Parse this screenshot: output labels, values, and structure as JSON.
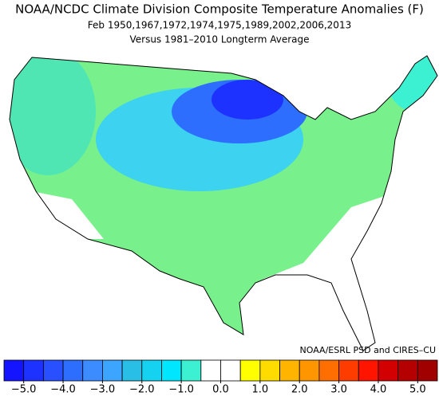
{
  "title": "NOAA/NCDC Climate Division Composite Temperature Anomalies (F)",
  "subtitle": "Feb  1950,1967,1972,1974,1975,1989,2002,2006,2013",
  "caption": "Versus 1981–2010 Longterm Average",
  "credit": "NOAA/ESRL PSD and CIRES–CU",
  "colorbar": {
    "colors": [
      "#1414ff",
      "#1e32ff",
      "#2850ff",
      "#2d6eff",
      "#3c8cff",
      "#3ca5ff",
      "#28bee6",
      "#14d2f0",
      "#00e6ff",
      "#3cf0d2",
      "#ffffff",
      "#ffffff",
      "#ffff00",
      "#ffdc00",
      "#ffb400",
      "#ff9600",
      "#ff6e00",
      "#ff3c00",
      "#ff1400",
      "#d20000",
      "#b40000",
      "#a00000"
    ],
    "ticks": [
      {
        "value": -5,
        "label": "−5.0"
      },
      {
        "value": -4,
        "label": "−4.0"
      },
      {
        "value": -3,
        "label": "−3.0"
      },
      {
        "value": -2,
        "label": "−2.0"
      },
      {
        "value": -1,
        "label": "−1.0"
      },
      {
        "value": 0,
        "label": "0.0"
      },
      {
        "value": 1,
        "label": "1.0"
      },
      {
        "value": 2,
        "label": "2.0"
      },
      {
        "value": 3,
        "label": "3.0"
      },
      {
        "value": 4,
        "label": "4.0"
      },
      {
        "value": 5,
        "label": "5.0"
      }
    ]
  }
}
